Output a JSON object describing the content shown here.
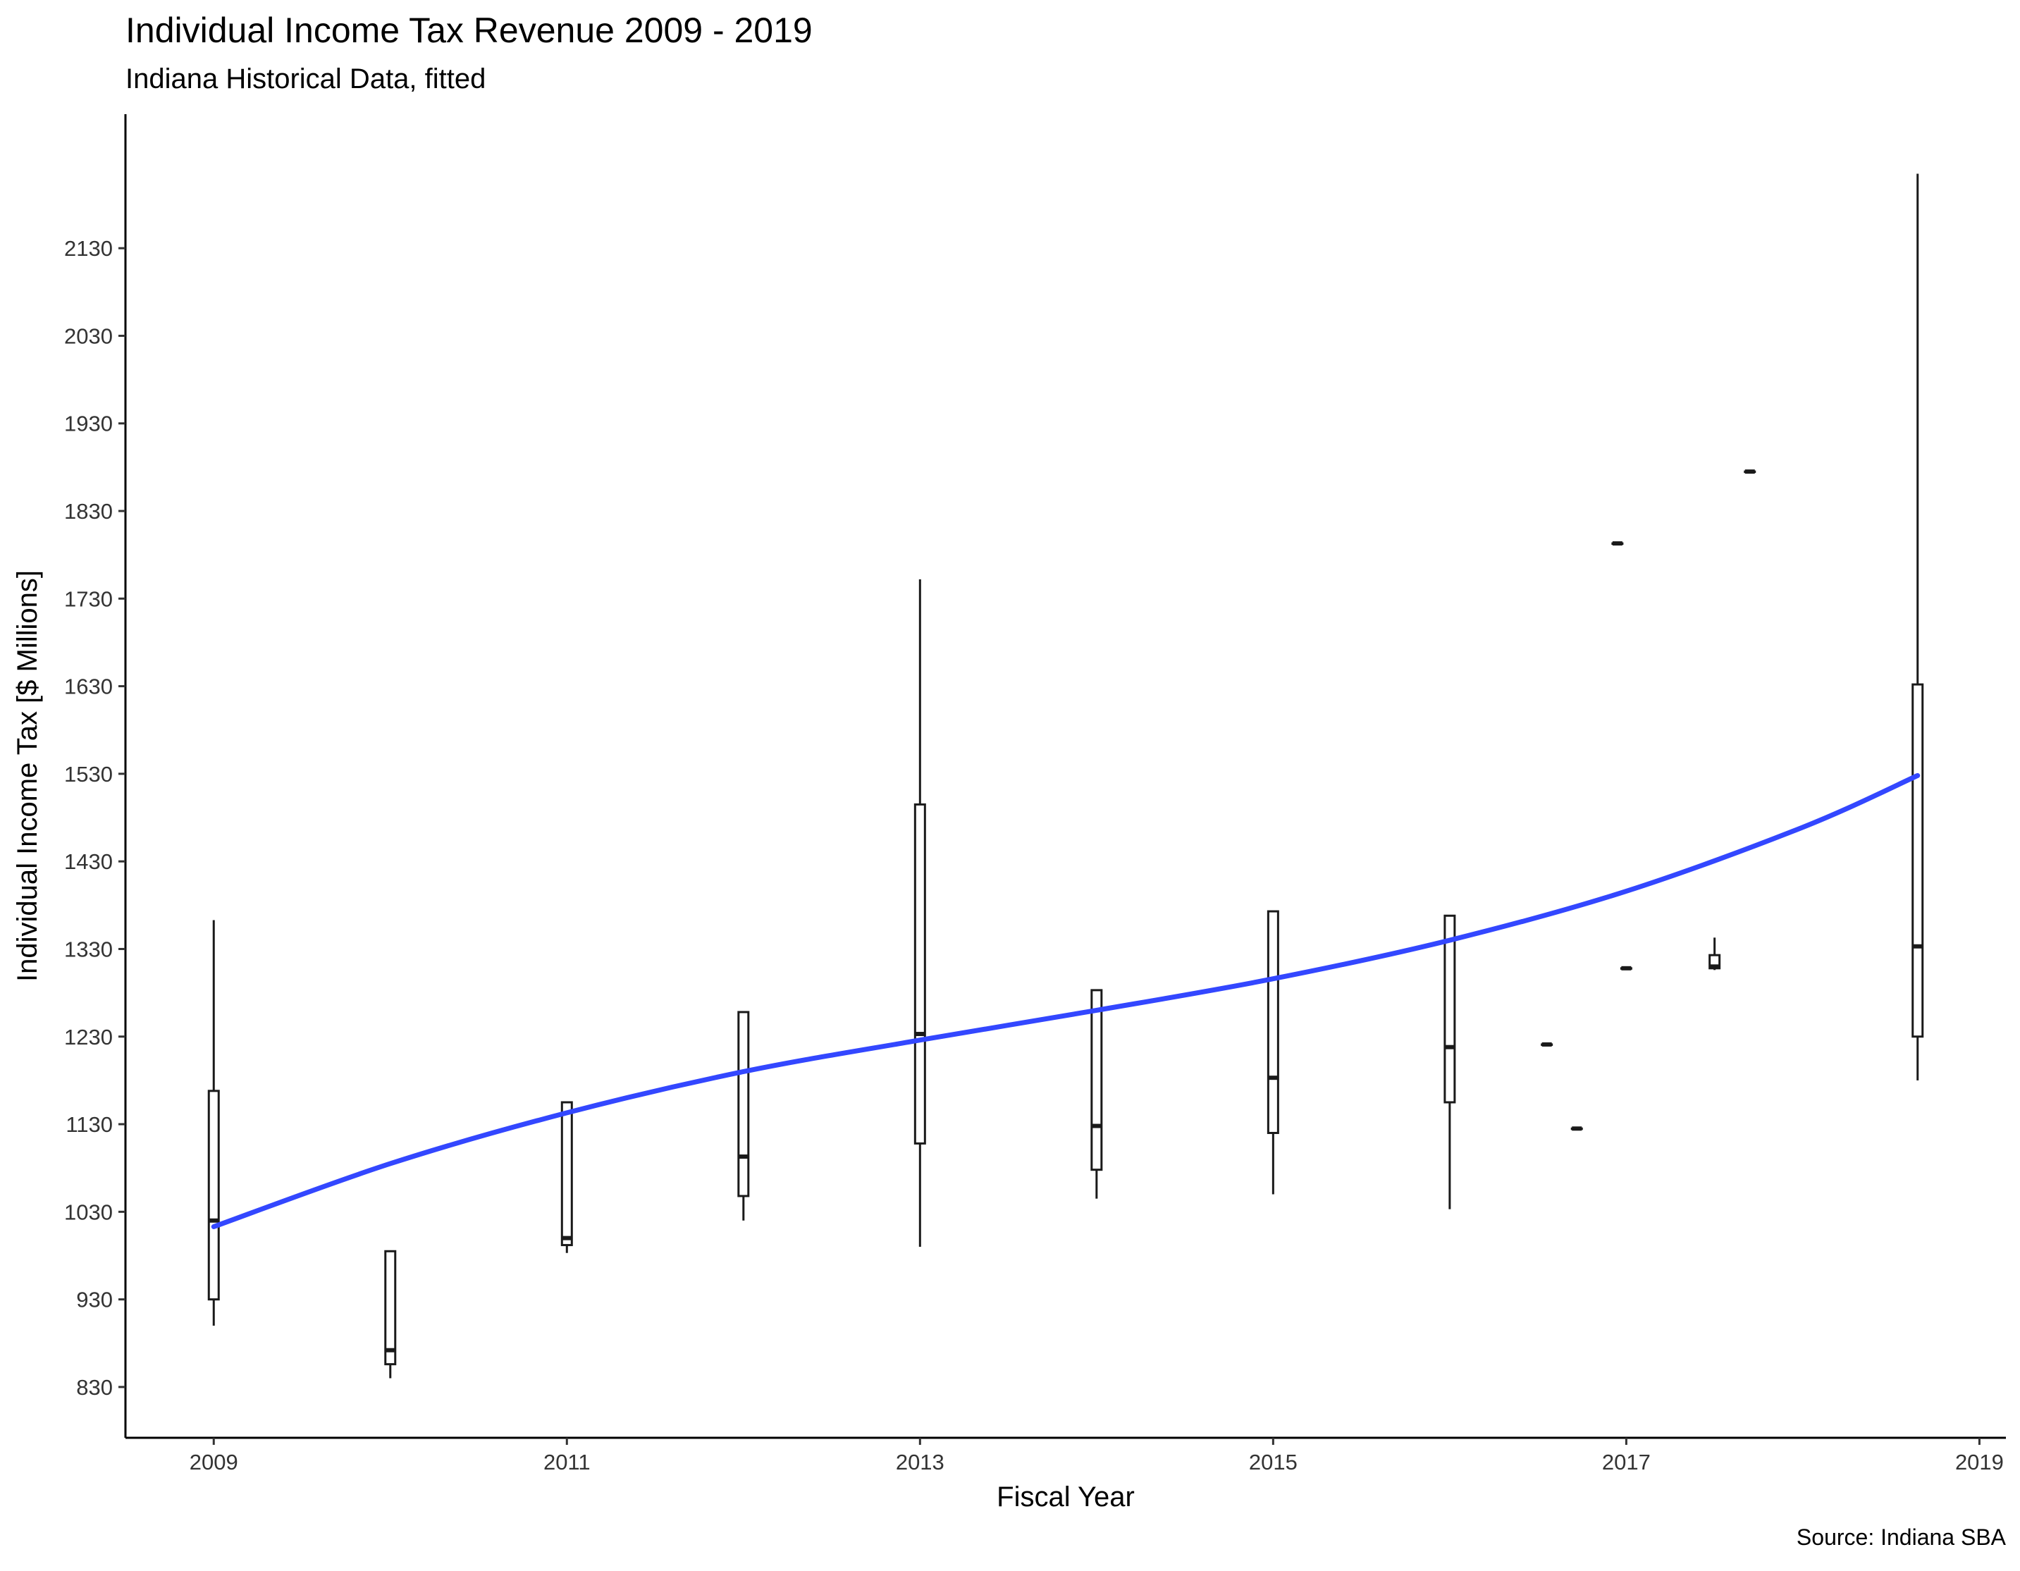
{
  "chart_data": {
    "type": "boxplot",
    "title": "Individual Income Tax Revenue 2009 - 2019",
    "subtitle": "Indiana Historical Data, fitted",
    "caption": "Source: Indiana SBA",
    "xlabel": "Fiscal Year",
    "ylabel": "Individual Income Tax [$ Millions]",
    "xlim": [
      2008.5,
      2019.15
    ],
    "ylim": [
      772,
      2283
    ],
    "x_ticks": [
      2009,
      2011,
      2013,
      2015,
      2017,
      2019
    ],
    "y_ticks": [
      830,
      930,
      1030,
      1130,
      1230,
      1330,
      1430,
      1530,
      1630,
      1730,
      1830,
      1930,
      2030,
      2130
    ],
    "grid": false,
    "colors": {
      "boxes": "#1a1a1a",
      "fit_line": "#3347ff",
      "axis": "#000000"
    },
    "boxes": [
      {
        "x": 2009.0,
        "ymin": 900,
        "lower": 930,
        "median": 1020,
        "upper": 1168,
        "ymax": 1363
      },
      {
        "x": 2010.0,
        "ymin": 840,
        "lower": 856,
        "median": 872,
        "upper": 985,
        "ymax": 985
      },
      {
        "x": 2011.0,
        "ymin": 983,
        "lower": 992,
        "median": 1000,
        "upper": 1155,
        "ymax": 1155
      },
      {
        "x": 2012.0,
        "ymin": 1020,
        "lower": 1048,
        "median": 1093,
        "upper": 1258,
        "ymax": 1258
      },
      {
        "x": 2013.0,
        "ymin": 990,
        "lower": 1108,
        "median": 1233,
        "upper": 1495,
        "ymax": 1752
      },
      {
        "x": 2014.0,
        "ymin": 1045,
        "lower": 1078,
        "median": 1128,
        "upper": 1283,
        "ymax": 1283
      },
      {
        "x": 2015.0,
        "ymin": 1050,
        "lower": 1120,
        "median": 1183,
        "upper": 1373,
        "ymax": 1373
      },
      {
        "x": 2016.0,
        "ymin": 1033,
        "lower": 1155,
        "median": 1218,
        "upper": 1368,
        "ymax": 1368
      },
      {
        "x": 2016.55,
        "ymin": 1221,
        "lower": 1221,
        "median": 1221,
        "upper": 1221,
        "ymax": 1221
      },
      {
        "x": 2016.72,
        "ymin": 1125,
        "lower": 1125,
        "median": 1125,
        "upper": 1125,
        "ymax": 1125
      },
      {
        "x": 2016.95,
        "ymin": 1793,
        "lower": 1793,
        "median": 1793,
        "upper": 1793,
        "ymax": 1793
      },
      {
        "x": 2017.0,
        "ymin": 1308,
        "lower": 1308,
        "median": 1308,
        "upper": 1308,
        "ymax": 1308
      },
      {
        "x": 2017.5,
        "ymin": 1306,
        "lower": 1308,
        "median": 1310,
        "upper": 1323,
        "ymax": 1343
      },
      {
        "x": 2017.7,
        "ymin": 1875,
        "lower": 1875,
        "median": 1875,
        "upper": 1875,
        "ymax": 1875
      },
      {
        "x": 2018.65,
        "ymin": 1180,
        "lower": 1230,
        "median": 1333,
        "upper": 1632,
        "ymax": 2215
      }
    ],
    "fit_line": {
      "x": [
        2009.0,
        2010.0,
        2011.0,
        2012.0,
        2013.0,
        2014.0,
        2015.0,
        2016.0,
        2017.0,
        2018.0,
        2018.65
      ],
      "y": [
        1013,
        1085,
        1143,
        1190,
        1226,
        1260,
        1296,
        1340,
        1396,
        1469,
        1528
      ]
    }
  }
}
